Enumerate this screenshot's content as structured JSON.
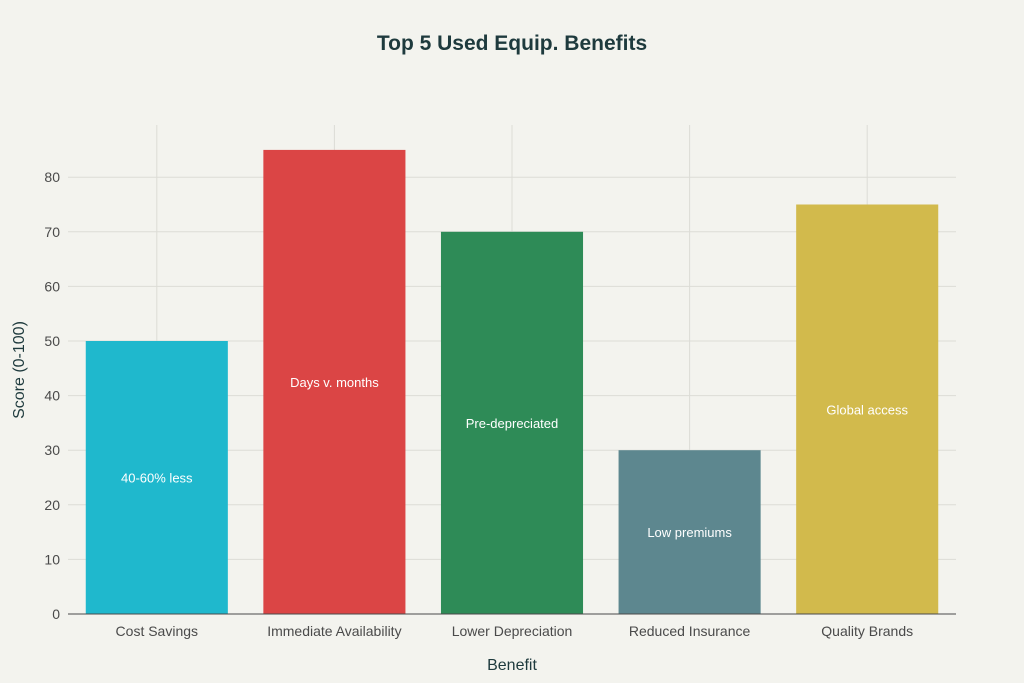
{
  "chart_data": {
    "type": "bar",
    "title": "Top 5 Used Equip. Benefits",
    "xlabel": "Benefit",
    "ylabel": "Score (0-100)",
    "categories": [
      "Cost Savings",
      "Immediate Availability",
      "Lower Depreciation",
      "Reduced Insurance",
      "Quality Brands"
    ],
    "values": [
      50,
      85,
      70,
      30,
      75
    ],
    "bar_labels": [
      "40-60% less",
      "Days v. months",
      "Pre-depreciated",
      "Low premiums",
      "Global access"
    ],
    "colors": [
      "#1fb8cd",
      "#db4545",
      "#2e8b57",
      "#5d878f",
      "#d2ba4c"
    ],
    "ylim": [
      0,
      90
    ],
    "yticks": [
      0,
      10,
      20,
      30,
      40,
      50,
      60,
      70,
      80
    ],
    "grid": true,
    "legend": "none"
  }
}
